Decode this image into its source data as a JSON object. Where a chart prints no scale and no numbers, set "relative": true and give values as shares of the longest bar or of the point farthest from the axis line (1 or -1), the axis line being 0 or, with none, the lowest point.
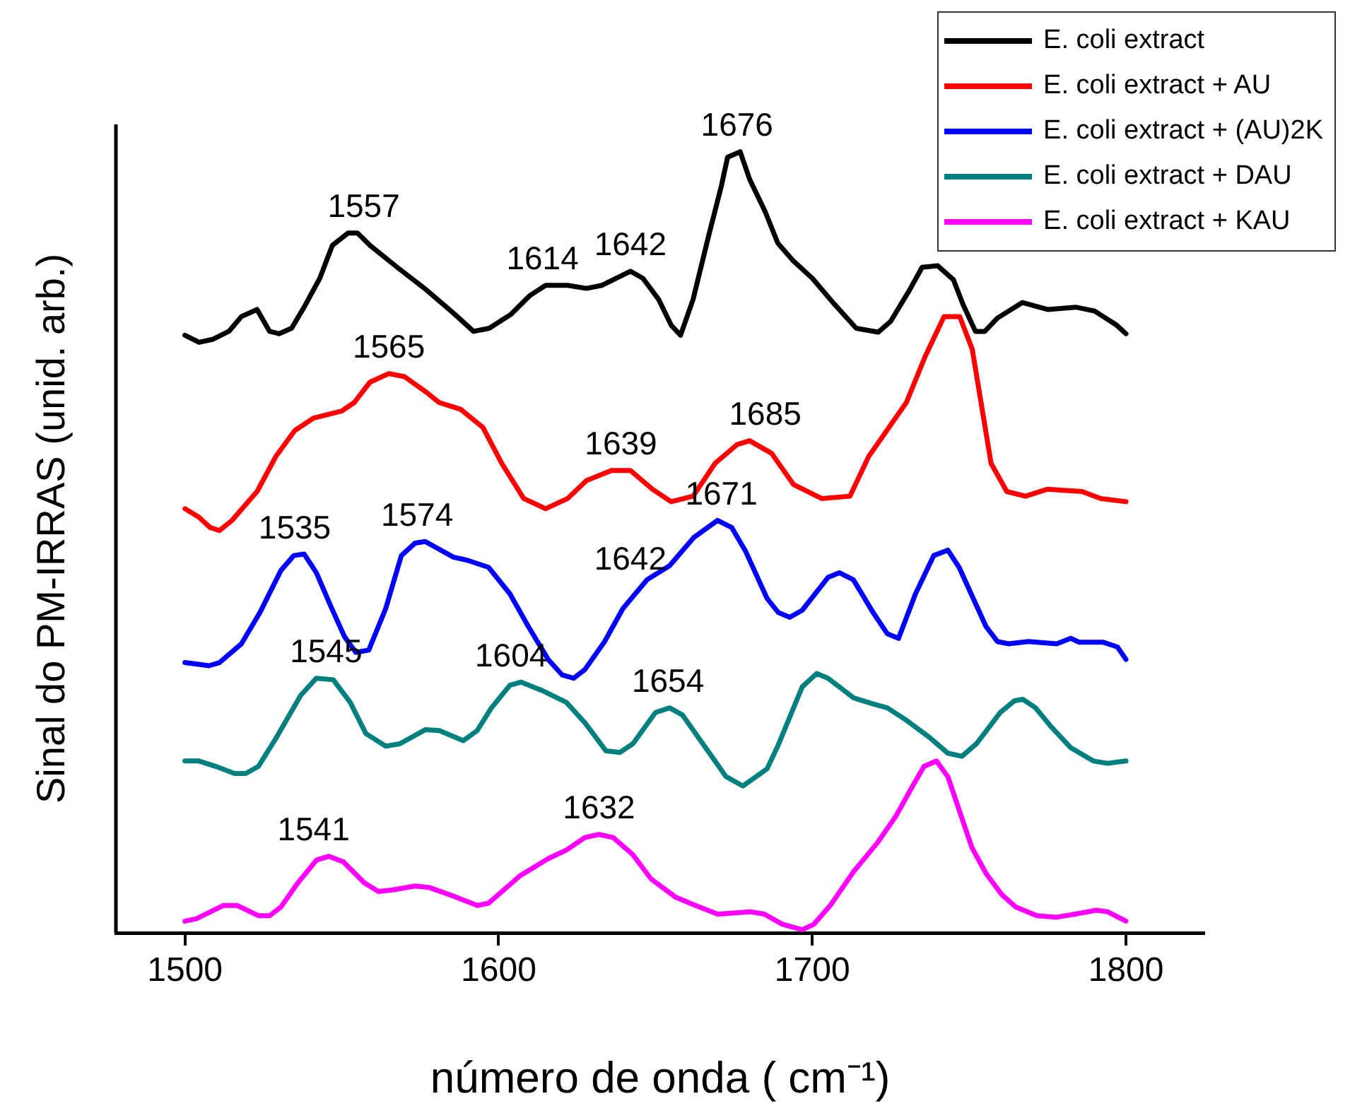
{
  "chart_data": {
    "type": "line",
    "relative": true,
    "xlabel": "número de onda ( cm⁻¹)",
    "ylabel": "Sinal do PM-IRRAS (unid. arb.)",
    "xlim": [
      1478,
      1825
    ],
    "xticks": [
      1500,
      1600,
      1700,
      1800
    ],
    "grid": false,
    "legend": "top right",
    "marker": "none",
    "line_style": "solid",
    "series": [
      {
        "name": "E. coli extract",
        "color": "#000000",
        "x": [
          1500,
          1504.5,
          1509,
          1514,
          1518,
          1523,
          1527,
          1530,
          1534,
          1538,
          1543,
          1547,
          1552,
          1555,
          1559,
          1568,
          1577,
          1586,
          1592,
          1597,
          1604,
          1610,
          1615,
          1622,
          1628,
          1633,
          1642,
          1646,
          1651,
          1655,
          1658,
          1662,
          1667,
          1671,
          1673,
          1677,
          1680,
          1685,
          1689,
          1694,
          1700,
          1707,
          1714,
          1721,
          1725,
          1731,
          1735,
          1740,
          1745,
          1748,
          1752,
          1755,
          1759,
          1767,
          1775,
          1784,
          1790,
          1797,
          1800
        ],
        "values": [
          0.765,
          0.756,
          0.76,
          0.77,
          0.789,
          0.798,
          0.77,
          0.767,
          0.774,
          0.801,
          0.838,
          0.88,
          0.896,
          0.896,
          0.88,
          0.851,
          0.823,
          0.792,
          0.77,
          0.774,
          0.792,
          0.816,
          0.829,
          0.829,
          0.825,
          0.829,
          0.847,
          0.838,
          0.811,
          0.778,
          0.765,
          0.811,
          0.893,
          0.956,
          0.993,
          1.0,
          0.965,
          0.923,
          0.883,
          0.86,
          0.838,
          0.805,
          0.774,
          0.769,
          0.783,
          0.823,
          0.852,
          0.854,
          0.836,
          0.805,
          0.77,
          0.77,
          0.787,
          0.807,
          0.798,
          0.801,
          0.796,
          0.778,
          0.767
        ]
      },
      {
        "name": "E. coli extract + AU",
        "color": "#ff0000",
        "x": [
          1500,
          1504.5,
          1508,
          1511,
          1515,
          1523,
          1529,
          1535,
          1541,
          1550,
          1554,
          1559,
          1565,
          1570,
          1577,
          1581,
          1588,
          1595,
          1601,
          1608,
          1615,
          1622,
          1628,
          1636,
          1642,
          1649,
          1655,
          1662,
          1669,
          1676,
          1680,
          1687,
          1694,
          1703,
          1712,
          1718,
          1730,
          1736,
          1742,
          1747,
          1751,
          1757,
          1762,
          1768,
          1775,
          1786,
          1792,
          1800
        ],
        "values": [
          0.543,
          0.532,
          0.519,
          0.515,
          0.528,
          0.565,
          0.61,
          0.643,
          0.659,
          0.668,
          0.679,
          0.705,
          0.716,
          0.712,
          0.692,
          0.679,
          0.67,
          0.647,
          0.601,
          0.556,
          0.543,
          0.556,
          0.579,
          0.592,
          0.592,
          0.568,
          0.552,
          0.559,
          0.601,
          0.625,
          0.63,
          0.614,
          0.574,
          0.556,
          0.559,
          0.61,
          0.679,
          0.738,
          0.789,
          0.789,
          0.747,
          0.601,
          0.565,
          0.559,
          0.568,
          0.565,
          0.556,
          0.552
        ]
      },
      {
        "name": "E. coli extract + (AU)2K",
        "color": "#0000ff",
        "x": [
          1500,
          1507.7,
          1511,
          1518,
          1523.9,
          1530.6,
          1534.7,
          1538,
          1541.9,
          1546.4,
          1550.9,
          1554.5,
          1558.6,
          1564,
          1569,
          1573.4,
          1576.6,
          1585.6,
          1590,
          1596.8,
          1603.6,
          1609.5,
          1615.8,
          1620.3,
          1623.9,
          1627.5,
          1633.8,
          1639.6,
          1647.3,
          1654.5,
          1662.2,
          1669.8,
          1674.3,
          1678.8,
          1685.6,
          1689.2,
          1692.8,
          1696.8,
          1705,
          1708.6,
          1713.1,
          1719.4,
          1723.9,
          1727.5,
          1732.9,
          1738.7,
          1743.2,
          1746.8,
          1755.4,
          1759,
          1762.6,
          1768.9,
          1777.9,
          1782.4,
          1785.1,
          1792.8,
          1797.3,
          1800
        ],
        "values": [
          0.346,
          0.342,
          0.346,
          0.37,
          0.41,
          0.464,
          0.483,
          0.485,
          0.461,
          0.419,
          0.379,
          0.359,
          0.362,
          0.415,
          0.483,
          0.499,
          0.501,
          0.481,
          0.477,
          0.468,
          0.434,
          0.392,
          0.35,
          0.33,
          0.326,
          0.337,
          0.373,
          0.415,
          0.452,
          0.47,
          0.506,
          0.528,
          0.519,
          0.488,
          0.428,
          0.41,
          0.404,
          0.413,
          0.455,
          0.461,
          0.452,
          0.41,
          0.383,
          0.377,
          0.434,
          0.483,
          0.49,
          0.468,
          0.392,
          0.373,
          0.37,
          0.373,
          0.37,
          0.377,
          0.372,
          0.372,
          0.366,
          0.35
        ]
      },
      {
        "name": "E. coli extract + DAU",
        "color": "#007f7f",
        "x": [
          1500,
          1504.5,
          1509.9,
          1515.8,
          1519.4,
          1523.4,
          1529.3,
          1536.9,
          1541.9,
          1547.3,
          1552.7,
          1557.7,
          1564,
          1568.5,
          1576.6,
          1581.1,
          1588.7,
          1593.2,
          1597.7,
          1603.6,
          1607.2,
          1614,
          1621.6,
          1627.5,
          1634.2,
          1638.7,
          1642.8,
          1650,
          1654.5,
          1658.6,
          1666.7,
          1672.5,
          1677.9,
          1685.6,
          1689.2,
          1696.8,
          1701.4,
          1705,
          1713.1,
          1719.4,
          1723.9,
          1729.7,
          1737.4,
          1743.2,
          1747.7,
          1752.3,
          1759.9,
          1764.4,
          1767.1,
          1771.2,
          1776.1,
          1782.4,
          1789.6,
          1794.1,
          1800
        ],
        "values": [
          0.22,
          0.22,
          0.213,
          0.204,
          0.204,
          0.213,
          0.251,
          0.304,
          0.326,
          0.324,
          0.295,
          0.255,
          0.239,
          0.242,
          0.26,
          0.259,
          0.246,
          0.259,
          0.288,
          0.317,
          0.321,
          0.31,
          0.295,
          0.269,
          0.233,
          0.231,
          0.242,
          0.282,
          0.288,
          0.279,
          0.233,
          0.2,
          0.188,
          0.21,
          0.241,
          0.315,
          0.332,
          0.326,
          0.301,
          0.293,
          0.288,
          0.273,
          0.25,
          0.23,
          0.226,
          0.242,
          0.282,
          0.297,
          0.299,
          0.288,
          0.264,
          0.237,
          0.22,
          0.217,
          0.22
        ]
      },
      {
        "name": "E. coli extract + KAU",
        "color": "#ff00ff",
        "x": [
          1500,
          1503.6,
          1512.2,
          1516.7,
          1523.4,
          1527,
          1530.6,
          1536,
          1541.9,
          1545.9,
          1550.5,
          1557.2,
          1561.7,
          1566.2,
          1573.4,
          1577.9,
          1585.6,
          1593.2,
          1596.8,
          1606.8,
          1615.8,
          1621.6,
          1627.5,
          1632,
          1636.5,
          1642.8,
          1648.6,
          1656.3,
          1662.2,
          1669.8,
          1680.2,
          1684.7,
          1690.5,
          1696.8,
          1700.5,
          1705.9,
          1713.1,
          1720.7,
          1726.6,
          1732,
          1735.6,
          1739.6,
          1743.2,
          1750.9,
          1755.4,
          1760.4,
          1764.9,
          1771.6,
          1777.9,
          1783.8,
          1790.5,
          1794.1,
          1800
        ],
        "values": [
          0.015,
          0.018,
          0.035,
          0.035,
          0.022,
          0.022,
          0.033,
          0.064,
          0.093,
          0.098,
          0.091,
          0.064,
          0.053,
          0.055,
          0.06,
          0.058,
          0.047,
          0.035,
          0.038,
          0.073,
          0.095,
          0.106,
          0.122,
          0.126,
          0.122,
          0.1,
          0.069,
          0.046,
          0.036,
          0.024,
          0.027,
          0.024,
          0.011,
          0.004,
          0.011,
          0.036,
          0.078,
          0.115,
          0.149,
          0.188,
          0.213,
          0.22,
          0.2,
          0.109,
          0.076,
          0.049,
          0.033,
          0.022,
          0.02,
          0.024,
          0.029,
          0.027,
          0.015
        ]
      }
    ],
    "annotations": [
      {
        "text": "1557",
        "x": 1557,
        "y": 0.896
      },
      {
        "text": "1614",
        "x": 1614,
        "y": 0.829
      },
      {
        "text": "1642",
        "x": 1642,
        "y": 0.847
      },
      {
        "text": "1676",
        "x": 1676,
        "y": 1.0
      },
      {
        "text": "1565",
        "x": 1565,
        "y": 0.716
      },
      {
        "text": "1639",
        "x": 1639,
        "y": 0.592
      },
      {
        "text": "1685",
        "x": 1685,
        "y": 0.63
      },
      {
        "text": "1535",
        "x": 1535,
        "y": 0.485
      },
      {
        "text": "1574",
        "x": 1574,
        "y": 0.501
      },
      {
        "text": "1642",
        "x": 1642,
        "y": 0.445
      },
      {
        "text": "1671",
        "x": 1671,
        "y": 0.528
      },
      {
        "text": "1545",
        "x": 1545,
        "y": 0.326
      },
      {
        "text": "1604",
        "x": 1604,
        "y": 0.321
      },
      {
        "text": "1654",
        "x": 1654,
        "y": 0.288
      },
      {
        "text": "1541",
        "x": 1541,
        "y": 0.098
      },
      {
        "text": "1632",
        "x": 1632,
        "y": 0.126
      }
    ]
  }
}
